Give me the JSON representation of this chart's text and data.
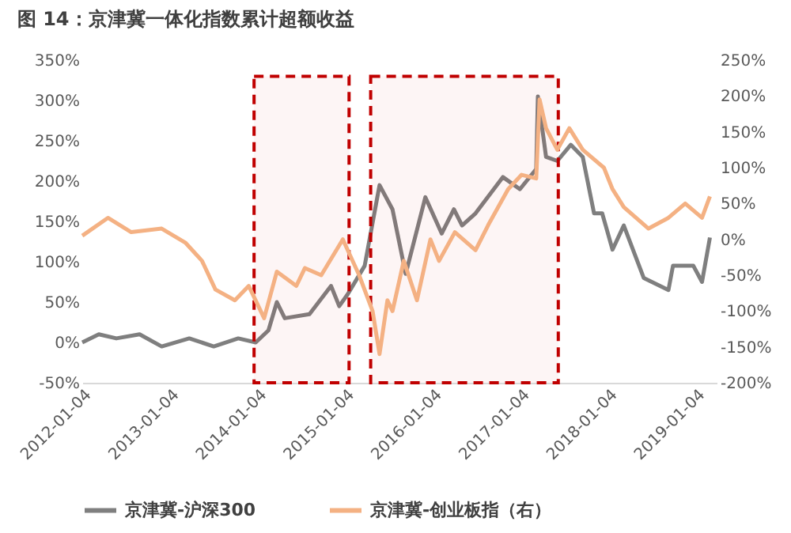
{
  "chart_data": {
    "type": "line",
    "title": "图 14：京津冀一体化指数累计超额收益",
    "x": [
      "2012-01-04",
      "2012-03-13",
      "2012-05-25",
      "2012-08-30",
      "2012-11-30",
      "2013-03-25",
      "2013-07-05",
      "2013-10-15",
      "2013-12-27",
      "2014-02-18",
      "2014-03-25",
      "2014-04-27",
      "2014-08-08",
      "2014-11-06",
      "2014-12-10",
      "2015-01-15",
      "2015-03-26",
      "2015-05-27",
      "2015-07-20",
      "2015-09-13",
      "2015-12-04",
      "2016-02-10",
      "2016-04-01",
      "2016-05-05",
      "2016-06-30",
      "2016-10-22",
      "2017-01-01",
      "2017-03-10",
      "2017-03-17",
      "2017-04-20",
      "2017-06-06",
      "2017-08-01",
      "2017-09-20",
      "2017-11-06",
      "2017-12-10",
      "2018-01-22",
      "2018-03-10",
      "2018-06-01",
      "2018-09-12",
      "2018-10-01",
      "2018-12-25",
      "2019-01-30",
      "2019-03-04"
    ],
    "series": [
      {
        "name": "京津冀-沪深300",
        "color": "#7f7f7f",
        "values": [
          0,
          10,
          5,
          10,
          -5,
          5,
          -5,
          5,
          0,
          15,
          50,
          30,
          35,
          70,
          45,
          60,
          95,
          195,
          165,
          85,
          180,
          135,
          165,
          145,
          160,
          205,
          190,
          215,
          305,
          230,
          225,
          245,
          230,
          160,
          160,
          115,
          145,
          80,
          65,
          95,
          95,
          75,
          130
        ]
      },
      {
        "name": "京津冀-创业板指（右）",
        "color": "#f4b183",
        "axis": "y2",
        "x": [
          "2012-01-04",
          "2012-04-20",
          "2012-07-26",
          "2012-11-30",
          "2013-03-10",
          "2013-05-17",
          "2013-07-12",
          "2013-10-01",
          "2013-11-28",
          "2014-01-31",
          "2014-03-25",
          "2014-06-14",
          "2014-07-20",
          "2014-09-26",
          "2014-12-25",
          "2015-03-03",
          "2015-04-28",
          "2015-05-27",
          "2015-06-29",
          "2015-07-20",
          "2015-09-05",
          "2015-10-30",
          "2015-12-25",
          "2016-01-30",
          "2016-04-05",
          "2016-06-30",
          "2016-08-22",
          "2016-11-13",
          "2017-01-08",
          "2017-03-10",
          "2017-03-24",
          "2017-04-20",
          "2017-06-06",
          "2017-07-26",
          "2017-09-20",
          "2017-12-17",
          "2018-01-22",
          "2018-03-10",
          "2018-06-21",
          "2018-09-12",
          "2018-11-21",
          "2019-01-30",
          "2019-03-04"
        ],
        "values": [
          5,
          30,
          10,
          15,
          -5,
          -30,
          -70,
          -85,
          -65,
          -110,
          -45,
          -65,
          -40,
          -50,
          0,
          -50,
          -100,
          -160,
          -85,
          -100,
          -30,
          -85,
          0,
          -30,
          10,
          -15,
          20,
          70,
          90,
          85,
          195,
          155,
          125,
          155,
          125,
          100,
          70,
          45,
          15,
          30,
          50,
          30,
          60
        ]
      }
    ],
    "legend_title": null,
    "xlim": [
      "2012-01-04",
      "2019-04-01"
    ],
    "xticks": [
      "2012-01-04",
      "2013-01-04",
      "2014-01-04",
      "2015-01-04",
      "2016-01-04",
      "2017-01-04",
      "2018-01-04",
      "2019-01-04"
    ],
    "ylim": [
      -50,
      350
    ],
    "yticks": [
      {
        "value": -50,
        "label": "-50%"
      },
      {
        "value": 0,
        "label": "0%"
      },
      {
        "value": 50,
        "label": "50%"
      },
      {
        "value": 100,
        "label": "100%"
      },
      {
        "value": 150,
        "label": "150%"
      },
      {
        "value": 200,
        "label": "200%"
      },
      {
        "value": 250,
        "label": "250%"
      },
      {
        "value": 300,
        "label": "300%"
      },
      {
        "value": 350,
        "label": "350%"
      }
    ],
    "y2lim": [
      -200,
      250
    ],
    "y2ticks": [
      {
        "value": -200,
        "label": "-200%"
      },
      {
        "value": -150,
        "label": "-150%"
      },
      {
        "value": -100,
        "label": "-100%"
      },
      {
        "value": -50,
        "label": "-50%"
      },
      {
        "value": 0,
        "label": "0%"
      },
      {
        "value": 50,
        "label": "50%"
      },
      {
        "value": 100,
        "label": "100%"
      },
      {
        "value": 150,
        "label": "150%"
      },
      {
        "value": 200,
        "label": "200%"
      },
      {
        "value": 250,
        "label": "250%"
      }
    ],
    "bands": [
      {
        "axis": "x",
        "from": "2013-12-20",
        "to": "2015-01-20",
        "color": "#c00000"
      },
      {
        "axis": "x",
        "from": "2015-04-20",
        "to": "2017-06-10",
        "color": "#c00000"
      }
    ],
    "legend": "bottom",
    "grid": false,
    "marker": "none",
    "line_style": "solid"
  }
}
